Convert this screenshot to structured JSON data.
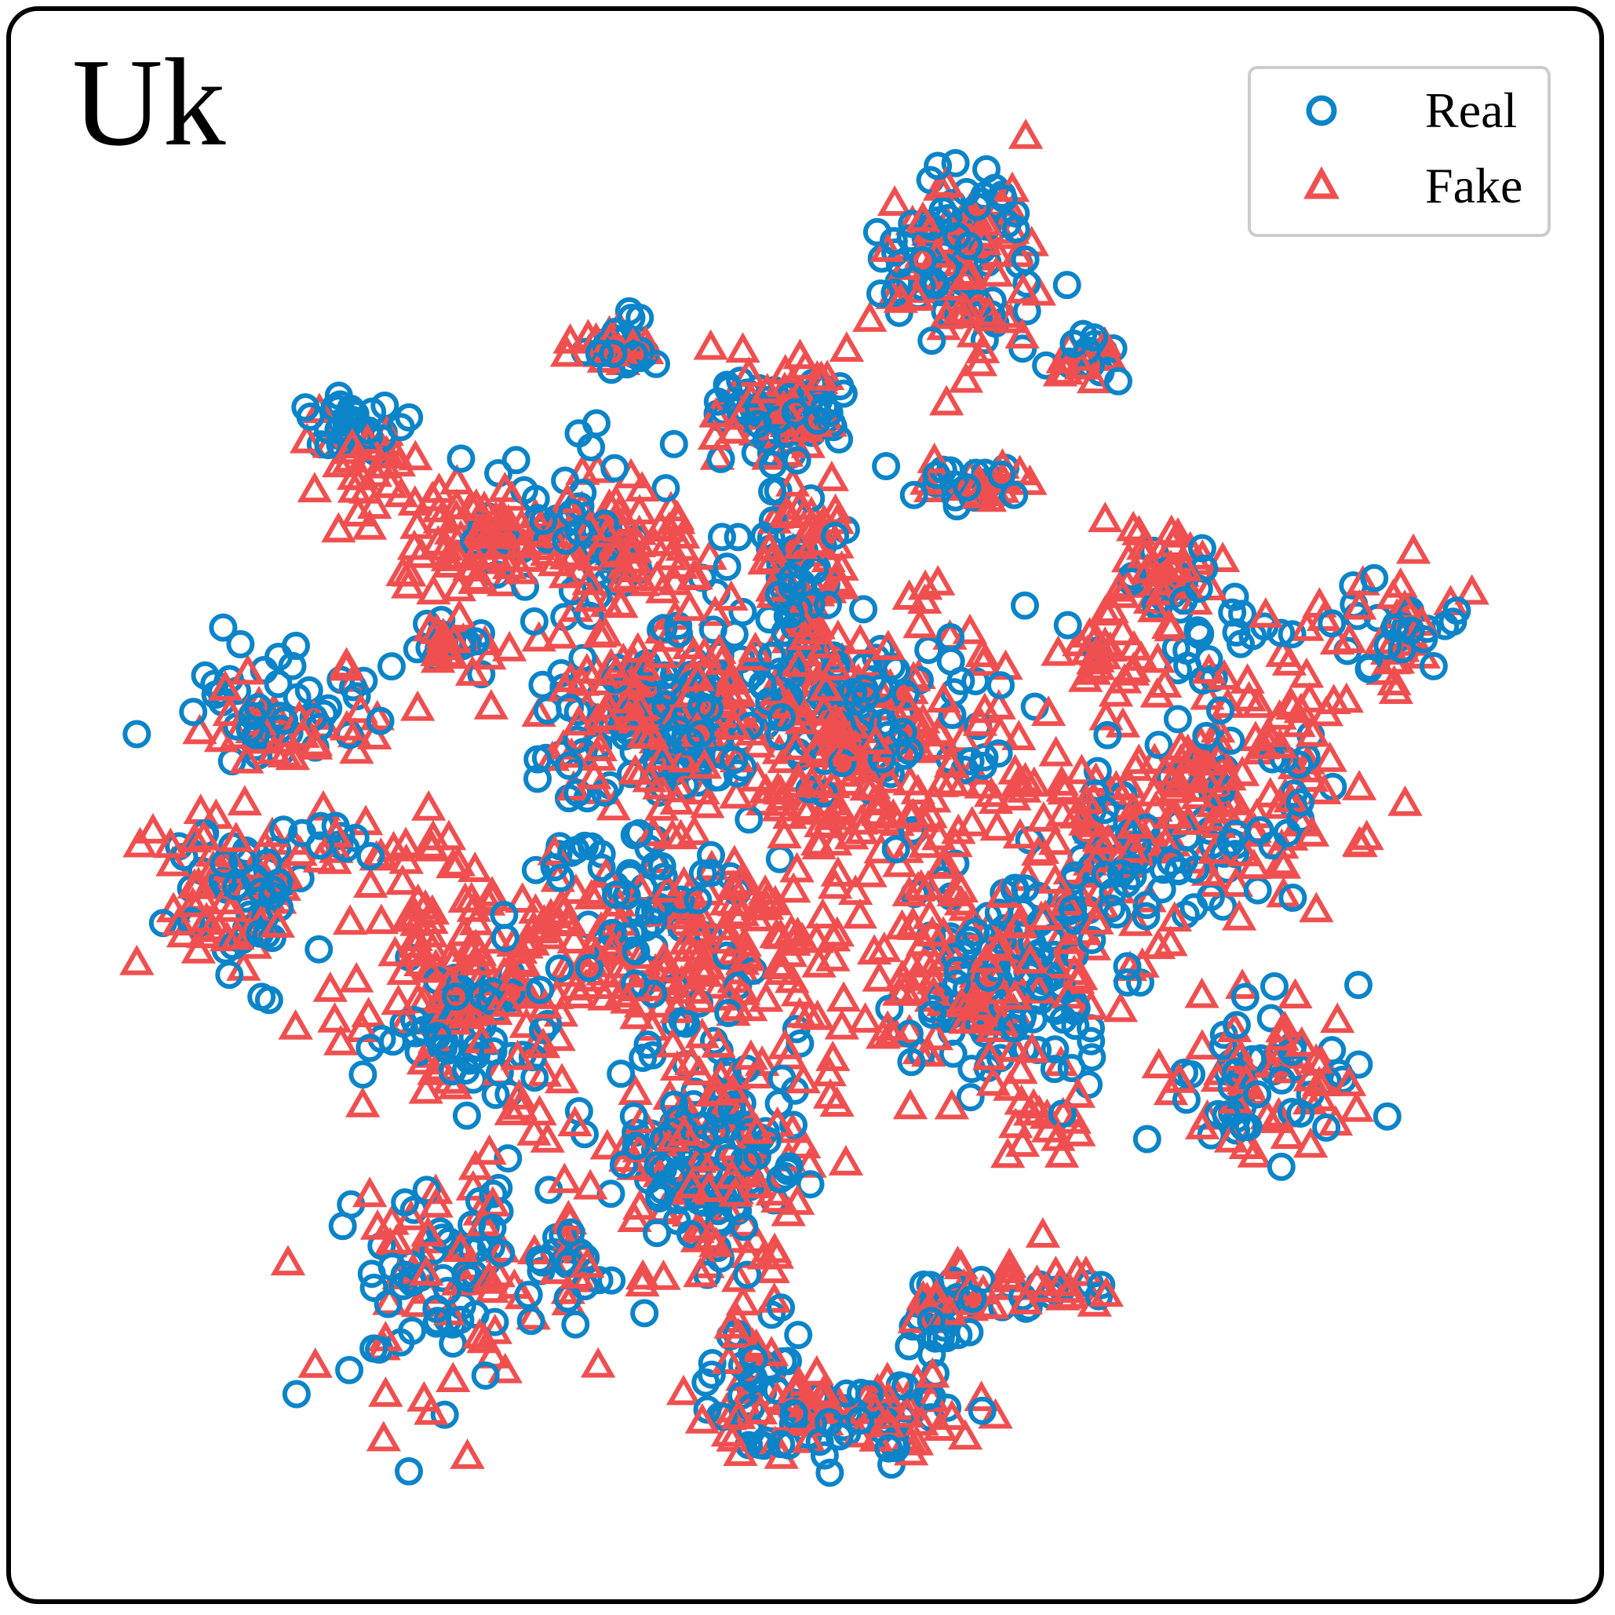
{
  "panel_label": "Uk",
  "colors": {
    "real": "#0b84c9",
    "fake": "#f04f50"
  },
  "chart_data": {
    "type": "scatter",
    "title": "Uk",
    "xlabel": "",
    "ylabel": "",
    "xlim": [
      0,
      100
    ],
    "ylim": [
      0,
      100
    ],
    "grid": false,
    "legend_position": "top-right",
    "series": [
      {
        "name": "Real",
        "marker": "circle",
        "color": "#0b84c9",
        "clusters": [
          {
            "cx": 61,
            "cy": 89,
            "sx": 2.7,
            "sy": 3.5,
            "n": 70
          },
          {
            "cx": 37,
            "cy": 82,
            "sx": 1.6,
            "sy": 0.9,
            "n": 20
          },
          {
            "cx": 18,
            "cy": 77,
            "sx": 1.8,
            "sy": 1.4,
            "n": 30
          },
          {
            "cx": 48.5,
            "cy": 77.8,
            "sx": 2.8,
            "sy": 1.5,
            "n": 60
          },
          {
            "cx": 70,
            "cy": 81.5,
            "sx": 1.2,
            "sy": 0.8,
            "n": 15
          },
          {
            "cx": 34,
            "cy": 69.5,
            "sx": 4,
            "sy": 2.8,
            "n": 55
          },
          {
            "cx": 50,
            "cy": 66,
            "sx": 1.5,
            "sy": 3.5,
            "n": 40
          },
          {
            "cx": 61.5,
            "cy": 72.5,
            "sx": 2,
            "sy": 0.9,
            "n": 20
          },
          {
            "cx": 13,
            "cy": 57,
            "sx": 4,
            "sy": 1.6,
            "n": 45
          },
          {
            "cx": 25,
            "cy": 61,
            "sx": 1.4,
            "sy": 1,
            "n": 15
          },
          {
            "cx": 39,
            "cy": 56,
            "sx": 4.5,
            "sy": 3.2,
            "n": 110
          },
          {
            "cx": 53,
            "cy": 57,
            "sx": 5,
            "sy": 3.6,
            "n": 110
          },
          {
            "cx": 77.5,
            "cy": 63.5,
            "sx": 2.8,
            "sy": 2.2,
            "n": 30
          },
          {
            "cx": 90.5,
            "cy": 62.5,
            "sx": 2.8,
            "sy": 1.8,
            "n": 25
          },
          {
            "cx": 10,
            "cy": 44,
            "sx": 2.5,
            "sy": 2.8,
            "n": 45
          },
          {
            "cx": 17,
            "cy": 47,
            "sx": 2.2,
            "sy": 1.1,
            "n": 12
          },
          {
            "cx": 26,
            "cy": 35,
            "sx": 3.2,
            "sy": 2.8,
            "n": 65
          },
          {
            "cx": 40,
            "cy": 42,
            "sx": 4,
            "sy": 3.5,
            "n": 60
          },
          {
            "cx": 64,
            "cy": 38,
            "sx": 3.8,
            "sy": 3.8,
            "n": 100
          },
          {
            "cx": 73,
            "cy": 45,
            "sx": 4,
            "sy": 3.5,
            "n": 55
          },
          {
            "cx": 80,
            "cy": 51,
            "sx": 4.2,
            "sy": 3.5,
            "n": 45
          },
          {
            "cx": 82.5,
            "cy": 31.5,
            "sx": 3.6,
            "sy": 2.6,
            "n": 45
          },
          {
            "cx": 43,
            "cy": 25,
            "sx": 3.8,
            "sy": 3.8,
            "n": 110
          },
          {
            "cx": 25.5,
            "cy": 17.5,
            "sx": 3.8,
            "sy": 4.5,
            "n": 70
          },
          {
            "cx": 46.5,
            "cy": 9.5,
            "sx": 2,
            "sy": 2.5,
            "n": 35
          },
          {
            "cx": 54,
            "cy": 7.5,
            "sx": 3.6,
            "sy": 1.3,
            "n": 45
          },
          {
            "cx": 59,
            "cy": 14.5,
            "sx": 1.5,
            "sy": 1.2,
            "n": 20
          },
          {
            "cx": 66,
            "cy": 16.5,
            "sx": 2.6,
            "sy": 1,
            "n": 15
          },
          {
            "cx": 33.5,
            "cy": 18,
            "sx": 0.8,
            "sy": 1.2,
            "n": 8
          },
          {
            "cx": 34,
            "cy": 46,
            "sx": 1.5,
            "sy": 1.2,
            "n": 12
          }
        ]
      },
      {
        "name": "Fake",
        "marker": "triangle",
        "color": "#f04f50",
        "clusters": [
          {
            "cx": 61,
            "cy": 88,
            "sx": 2.5,
            "sy": 3.5,
            "n": 75
          },
          {
            "cx": 36.5,
            "cy": 82,
            "sx": 1.5,
            "sy": 0.8,
            "n": 20
          },
          {
            "cx": 19,
            "cy": 74,
            "sx": 2,
            "sy": 2.2,
            "n": 30
          },
          {
            "cx": 48.5,
            "cy": 77.5,
            "sx": 2.5,
            "sy": 1.6,
            "n": 45
          },
          {
            "cx": 70,
            "cy": 81,
            "sx": 1.2,
            "sy": 0.8,
            "n": 10
          },
          {
            "cx": 27,
            "cy": 69,
            "sx": 4,
            "sy": 1.6,
            "n": 80
          },
          {
            "cx": 38,
            "cy": 68,
            "sx": 3,
            "sy": 3.5,
            "n": 70
          },
          {
            "cx": 50,
            "cy": 67,
            "sx": 2,
            "sy": 3.5,
            "n": 50
          },
          {
            "cx": 62,
            "cy": 72.5,
            "sx": 2,
            "sy": 0.8,
            "n": 20
          },
          {
            "cx": 75.5,
            "cy": 66.5,
            "sx": 2.5,
            "sy": 1.8,
            "n": 40
          },
          {
            "cx": 90.5,
            "cy": 62.5,
            "sx": 2.5,
            "sy": 2,
            "n": 30
          },
          {
            "cx": 13,
            "cy": 56,
            "sx": 3.5,
            "sy": 1.8,
            "n": 35
          },
          {
            "cx": 25,
            "cy": 61,
            "sx": 1.5,
            "sy": 1,
            "n": 15
          },
          {
            "cx": 39,
            "cy": 56,
            "sx": 4.5,
            "sy": 3.2,
            "n": 110
          },
          {
            "cx": 54,
            "cy": 54,
            "sx": 5.5,
            "sy": 5,
            "n": 200
          },
          {
            "cx": 71,
            "cy": 61,
            "sx": 2.2,
            "sy": 1.4,
            "n": 25
          },
          {
            "cx": 79,
            "cy": 51,
            "sx": 5,
            "sy": 4,
            "n": 130
          },
          {
            "cx": 70,
            "cy": 47,
            "sx": 3,
            "sy": 3,
            "n": 40
          },
          {
            "cx": 9.5,
            "cy": 44,
            "sx": 2.5,
            "sy": 3,
            "n": 60
          },
          {
            "cx": 22,
            "cy": 47,
            "sx": 3,
            "sy": 1.3,
            "n": 20
          },
          {
            "cx": 28,
            "cy": 38,
            "sx": 5,
            "sy": 4,
            "n": 150
          },
          {
            "cx": 44,
            "cy": 40,
            "sx": 5,
            "sy": 4,
            "n": 120
          },
          {
            "cx": 62,
            "cy": 38,
            "sx": 4.5,
            "sy": 4.5,
            "n": 110
          },
          {
            "cx": 82.5,
            "cy": 31.5,
            "sx": 3.5,
            "sy": 2.8,
            "n": 50
          },
          {
            "cx": 44,
            "cy": 25,
            "sx": 3.8,
            "sy": 4,
            "n": 100
          },
          {
            "cx": 25.5,
            "cy": 18,
            "sx": 3.8,
            "sy": 4.5,
            "n": 60
          },
          {
            "cx": 46,
            "cy": 9.5,
            "sx": 2,
            "sy": 2.5,
            "n": 25
          },
          {
            "cx": 55,
            "cy": 7.8,
            "sx": 4.2,
            "sy": 1.2,
            "n": 45
          },
          {
            "cx": 65,
            "cy": 17,
            "sx": 3.2,
            "sy": 1,
            "n": 25
          },
          {
            "cx": 59.5,
            "cy": 15,
            "sx": 1.2,
            "sy": 1,
            "n": 12
          },
          {
            "cx": 33.5,
            "cy": 18,
            "sx": 0.8,
            "sy": 1.2,
            "n": 8
          },
          {
            "cx": 67,
            "cy": 28,
            "sx": 1.5,
            "sy": 1.2,
            "n": 15
          }
        ]
      }
    ]
  }
}
